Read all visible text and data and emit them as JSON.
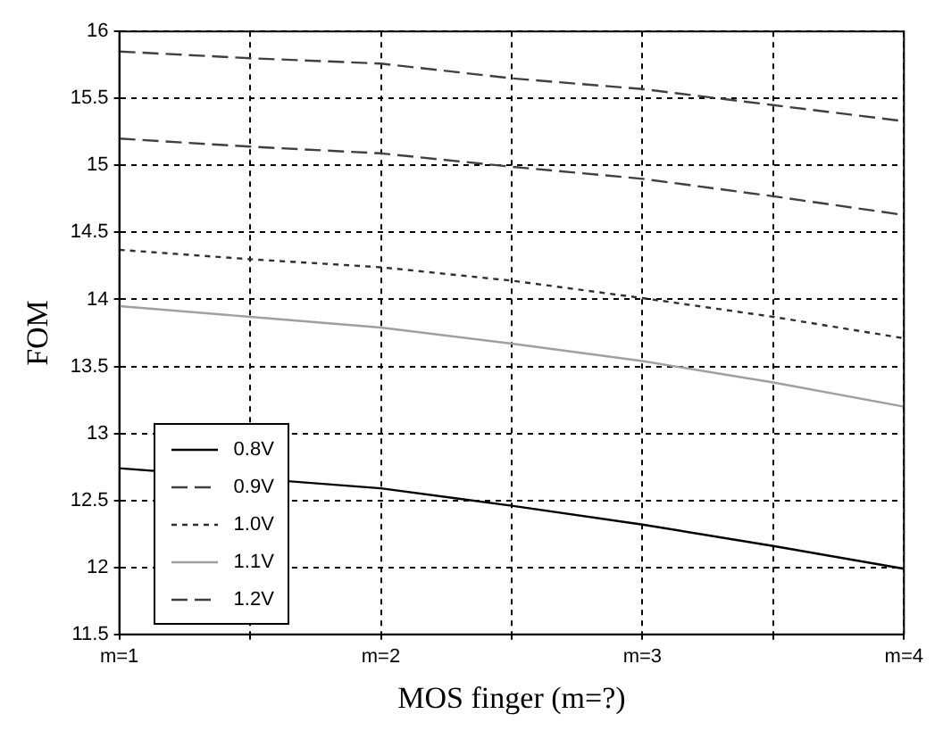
{
  "chart_data": {
    "type": "line",
    "xlabel": "MOS finger (m=?)",
    "ylabel": "FOM",
    "x": [
      1,
      1.5,
      2,
      2.5,
      3,
      3.5,
      4
    ],
    "series": [
      {
        "name": "0.8V",
        "color": "#000000",
        "line_style": "solid",
        "values": [
          12.74,
          null,
          12.59,
          12.46,
          12.32,
          12.16,
          11.99
        ]
      },
      {
        "name": "0.9V",
        "color": "#404040",
        "line_style": "dashed",
        "values": [
          15.85,
          15.8,
          15.76,
          15.65,
          15.57,
          15.45,
          15.33
        ]
      },
      {
        "name": "1.0V",
        "color": "#303030",
        "line_style": "dotted",
        "values": [
          14.37,
          14.3,
          14.24,
          14.14,
          14.01,
          13.87,
          13.71
        ]
      },
      {
        "name": "1.1V",
        "color": "#a0a0a0",
        "line_style": "solid",
        "values": [
          13.95,
          13.87,
          13.79,
          13.67,
          13.54,
          13.38,
          13.2
        ]
      },
      {
        "name": "1.2V",
        "color": "#404040",
        "line_style": "dashed",
        "values": [
          15.2,
          15.14,
          15.09,
          14.99,
          14.9,
          14.77,
          14.63
        ]
      }
    ],
    "xlim": [
      1,
      4
    ],
    "xticks": [
      {
        "value": 1,
        "label": "m=1"
      },
      {
        "value": 1.5,
        "label": null
      },
      {
        "value": 2,
        "label": "m=2"
      },
      {
        "value": 2.5,
        "label": null
      },
      {
        "value": 3,
        "label": "m=3"
      },
      {
        "value": 3.5,
        "label": null
      },
      {
        "value": 4,
        "label": "m=4"
      }
    ],
    "ylim": [
      11.5,
      16
    ],
    "yticks": [
      11.5,
      12,
      12.5,
      13,
      13.5,
      14,
      14.5,
      15,
      15.5,
      16
    ],
    "grid": true,
    "legend": "bottom left",
    "marker": "none"
  }
}
